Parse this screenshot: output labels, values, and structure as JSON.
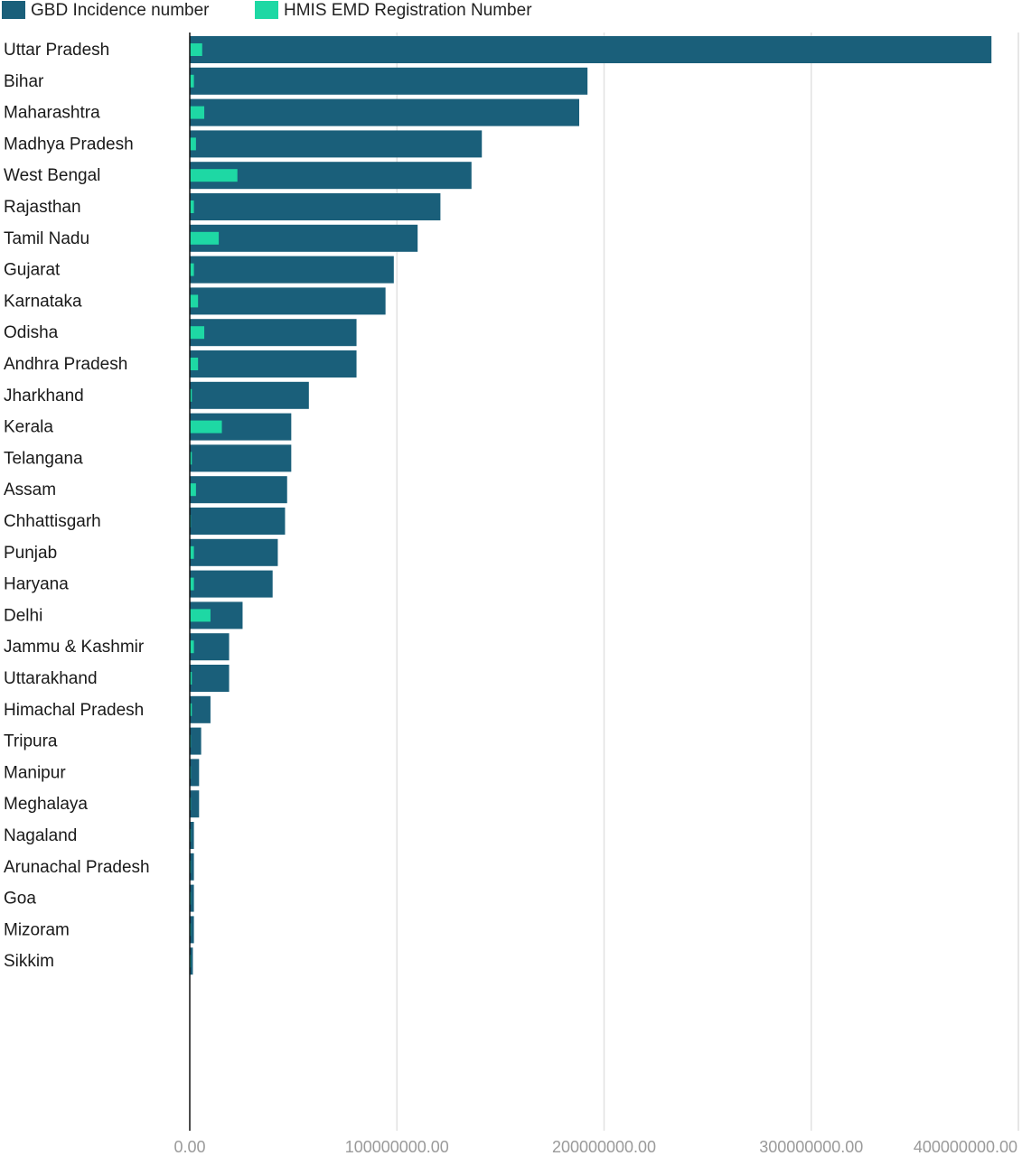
{
  "chart_data": {
    "type": "bar",
    "orientation": "horizontal",
    "categories": [
      "Uttar Pradesh",
      "Bihar",
      "Maharashtra",
      "Madhya Pradesh",
      "West Bengal",
      "Rajasthan",
      "Tamil Nadu",
      "Gujarat",
      "Karnataka",
      "Odisha",
      "Andhra Pradesh",
      "Jharkhand",
      "Kerala",
      "Telangana",
      "Assam",
      "Chhattisgarh",
      "Punjab",
      "Haryana",
      "Delhi",
      "Jammu & Kashmir",
      "Uttarakhand",
      "Himachal Pradesh",
      "Tripura",
      "Manipur",
      "Meghalaya",
      "Nagaland",
      "Arunachal Pradesh",
      "Goa",
      "Mizoram",
      "Sikkim"
    ],
    "series": [
      {
        "name": "GBD Incidence number",
        "color": "#1a5f7a",
        "values": [
          387000000,
          192000000,
          188000000,
          141000000,
          136000000,
          121000000,
          110000000,
          98500000,
          94500000,
          80500000,
          80500000,
          57500000,
          49000000,
          49000000,
          47000000,
          46000000,
          42500000,
          40000000,
          25500000,
          19000000,
          19000000,
          10000000,
          5500000,
          4500000,
          4500000,
          2000000,
          2000000,
          2000000,
          2000000,
          1500000
        ]
      },
      {
        "name": "HMIS EMD Registration Number",
        "color": "#1ed8a4",
        "values": [
          6000000,
          2000000,
          7000000,
          3000000,
          23000000,
          2000000,
          14000000,
          2000000,
          4000000,
          7000000,
          4000000,
          1000000,
          15500000,
          1000000,
          3000000,
          500000,
          2000000,
          2000000,
          10000000,
          2000000,
          1000000,
          1000000,
          500000,
          500000,
          500000,
          500000,
          500000,
          500000,
          500000,
          500000
        ]
      }
    ],
    "x_ticks": [
      0,
      100000000,
      200000000,
      300000000,
      400000000
    ],
    "x_tick_labels": [
      "0.00",
      "100000000.00",
      "200000000.00",
      "300000000.00",
      "400000000.00"
    ],
    "xlim": [
      0,
      400000000
    ],
    "grid": true,
    "legend_position": "top-left"
  }
}
